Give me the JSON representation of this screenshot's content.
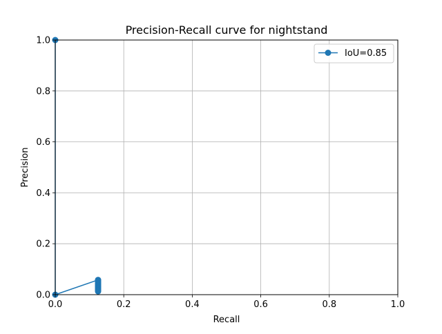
{
  "chart_data": {
    "type": "line",
    "title": "Precision-Recall curve for nightstand",
    "xlabel": "Recall",
    "ylabel": "Precision",
    "xlim": [
      0,
      1
    ],
    "ylim": [
      0,
      1
    ],
    "x_ticks": [
      "0.0",
      "0.2",
      "0.4",
      "0.6",
      "0.8",
      "1.0"
    ],
    "y_ticks": [
      "0.0",
      "0.2",
      "0.4",
      "0.6",
      "0.8",
      "1.0"
    ],
    "grid": true,
    "legend_position": "top-right",
    "series": [
      {
        "name": "IoU=0.85",
        "color": "#1f77b4",
        "marker": "circle",
        "points": [
          [
            0.0,
            1.0
          ],
          [
            0.0,
            0.0
          ],
          [
            0.125,
            0.058
          ],
          [
            0.125,
            0.055
          ],
          [
            0.125,
            0.052
          ],
          [
            0.125,
            0.049
          ],
          [
            0.125,
            0.046
          ],
          [
            0.125,
            0.043
          ],
          [
            0.125,
            0.04
          ],
          [
            0.125,
            0.037
          ],
          [
            0.125,
            0.034
          ],
          [
            0.125,
            0.031
          ],
          [
            0.125,
            0.028
          ],
          [
            0.125,
            0.025
          ],
          [
            0.125,
            0.022
          ],
          [
            0.125,
            0.019
          ],
          [
            0.125,
            0.016
          ],
          [
            0.125,
            0.013
          ]
        ]
      }
    ]
  }
}
